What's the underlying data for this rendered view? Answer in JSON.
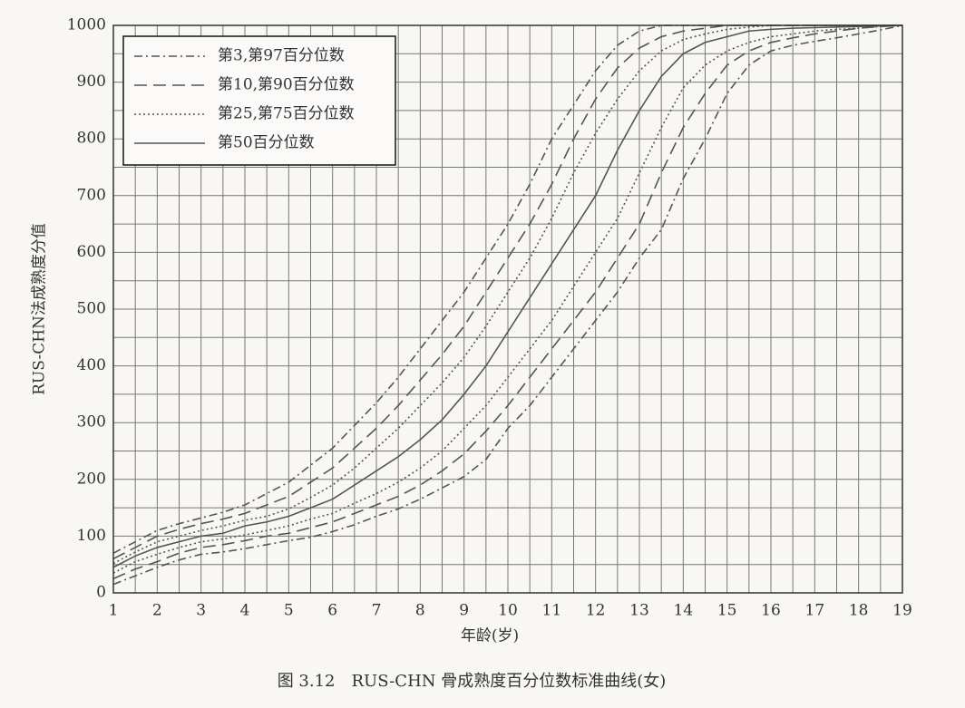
{
  "chart_data": {
    "type": "line",
    "xlabel": "年龄(岁)",
    "ylabel": "RUS-CHN法成熟度分值",
    "caption": "图 3.12　RUS-CHN 骨成熟度百分位数标准曲线(女)",
    "x": [
      1,
      1.5,
      2,
      2.5,
      3,
      3.5,
      4,
      4.5,
      5,
      5.5,
      6,
      6.5,
      7,
      7.5,
      8,
      8.5,
      9,
      9.5,
      10,
      10.5,
      11,
      11.5,
      12,
      12.5,
      13,
      13.5,
      14,
      14.5,
      15,
      15.5,
      16,
      16.5,
      17,
      17.5,
      18,
      18.5,
      19
    ],
    "xlim": [
      1,
      19
    ],
    "xticks": [
      1,
      2,
      3,
      4,
      5,
      6,
      7,
      8,
      9,
      10,
      11,
      12,
      13,
      14,
      15,
      16,
      17,
      18,
      19
    ],
    "ylim": [
      0,
      1000
    ],
    "yticks": [
      0,
      100,
      200,
      300,
      400,
      500,
      600,
      700,
      800,
      900,
      1000
    ],
    "grid": true,
    "legend": "upper left",
    "series": [
      {
        "name": "第3,第97百分位数",
        "color": "#555555",
        "dash": "dashdot",
        "values": [
          15,
          30,
          45,
          58,
          68,
          72,
          78,
          85,
          92,
          98,
          108,
          120,
          135,
          148,
          165,
          185,
          205,
          235,
          290,
          330,
          380,
          430,
          480,
          530,
          590,
          640,
          730,
          800,
          880,
          930,
          955,
          965,
          972,
          978,
          985,
          992,
          1000
        ]
      },
      {
        "name": "第10,第90百分位数",
        "color": "#555555",
        "dash": "dashed",
        "values": [
          25,
          42,
          55,
          70,
          80,
          85,
          92,
          100,
          105,
          115,
          125,
          140,
          155,
          170,
          190,
          215,
          245,
          285,
          330,
          380,
          430,
          480,
          530,
          590,
          650,
          740,
          820,
          880,
          930,
          955,
          970,
          978,
          985,
          990,
          995,
          998,
          1000
        ]
      },
      {
        "name": "第25,第75百分位数",
        "color": "#555555",
        "dash": "dotted",
        "values": [
          35,
          55,
          68,
          80,
          90,
          95,
          102,
          110,
          118,
          130,
          140,
          158,
          175,
          195,
          220,
          250,
          290,
          330,
          380,
          430,
          480,
          540,
          600,
          660,
          740,
          820,
          890,
          930,
          955,
          970,
          980,
          985,
          990,
          993,
          995,
          998,
          1000
        ]
      },
      {
        "name": "第50百分位数",
        "color": "#555555",
        "dash": "solid",
        "values": [
          45,
          65,
          80,
          90,
          100,
          105,
          118,
          125,
          135,
          150,
          165,
          190,
          215,
          240,
          270,
          305,
          350,
          400,
          460,
          520,
          580,
          640,
          700,
          780,
          850,
          910,
          950,
          970,
          980,
          990,
          993,
          995,
          996,
          997,
          998,
          999,
          1000
        ]
      },
      {
        "name": "第25,第75百分位数",
        "color": "#555555",
        "dash": "dotted",
        "values": [
          52,
          72,
          90,
          100,
          110,
          118,
          128,
          135,
          148,
          168,
          190,
          220,
          255,
          290,
          330,
          370,
          415,
          470,
          530,
          590,
          660,
          740,
          810,
          870,
          920,
          955,
          975,
          985,
          993,
          997,
          1000,
          1000,
          1000,
          1000,
          1000,
          1000,
          1000
        ]
      },
      {
        "name": "第10,第90百分位数",
        "color": "#555555",
        "dash": "dashed",
        "values": [
          60,
          80,
          100,
          112,
          122,
          130,
          140,
          155,
          170,
          195,
          220,
          255,
          290,
          330,
          375,
          420,
          470,
          530,
          590,
          650,
          720,
          800,
          870,
          925,
          960,
          980,
          990,
          995,
          1000,
          1000,
          1000,
          1000,
          1000,
          1000,
          1000,
          1000,
          1000
        ]
      },
      {
        "name": "第3,第97百分位数",
        "color": "#555555",
        "dash": "dashdot",
        "values": [
          70,
          90,
          110,
          122,
          132,
          142,
          155,
          175,
          195,
          225,
          255,
          295,
          335,
          380,
          430,
          480,
          530,
          590,
          650,
          720,
          800,
          860,
          920,
          965,
          990,
          1000,
          1000,
          1000,
          1000,
          1000,
          1000,
          1000,
          1000,
          1000,
          1000,
          1000,
          1000
        ]
      }
    ]
  }
}
